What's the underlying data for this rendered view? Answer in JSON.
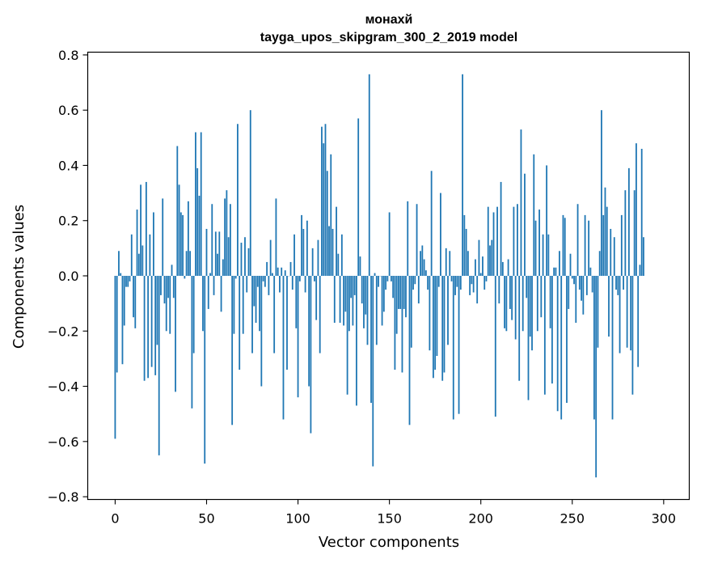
{
  "chart_data": {
    "type": "bar",
    "title": "монахй",
    "subtitle": "tayga_upos_skipgram_300_2_2019 model",
    "xlabel": "Vector components",
    "ylabel": "Components values",
    "xlim": [
      -15,
      314
    ],
    "ylim": [
      -0.81,
      0.81
    ],
    "xticks": [
      0,
      50,
      100,
      150,
      200,
      250,
      300
    ],
    "yticks": [
      -0.8,
      -0.6,
      -0.4,
      -0.2,
      0.0,
      0.2,
      0.4,
      0.6,
      0.8
    ],
    "ytick_labels": [
      "−0.8",
      "−0.6",
      "−0.4",
      "−0.2",
      "0.0",
      "0.2",
      "0.4",
      "0.6",
      "0.8"
    ],
    "xtick_labels": [
      "0",
      "50",
      "100",
      "150",
      "200",
      "250",
      "300"
    ],
    "bar_color": "#1f77b4",
    "values": [
      -0.59,
      -0.35,
      0.09,
      0.01,
      -0.32,
      -0.18,
      -0.04,
      -0.04,
      -0.02,
      0.15,
      -0.15,
      -0.19,
      0.24,
      0.08,
      0.33,
      0.11,
      -0.38,
      0.34,
      -0.37,
      0.15,
      -0.33,
      0.23,
      -0.36,
      -0.25,
      -0.65,
      -0.07,
      0.28,
      -0.1,
      -0.2,
      -0.08,
      -0.21,
      0.04,
      -0.08,
      -0.42,
      0.47,
      0.33,
      0.23,
      0.22,
      -0.01,
      0.09,
      0.27,
      0.09,
      -0.48,
      -0.28,
      0.52,
      0.39,
      0.29,
      0.52,
      -0.2,
      -0.68,
      0.17,
      -0.12,
      0.01,
      0.26,
      -0.07,
      0.16,
      0.08,
      0.16,
      -0.13,
      0.06,
      0.28,
      0.31,
      0.14,
      0.26,
      -0.54,
      -0.21,
      -0.01,
      0.55,
      -0.34,
      0.12,
      -0.21,
      0.14,
      -0.06,
      0.1,
      0.6,
      -0.28,
      -0.11,
      -0.17,
      -0.04,
      -0.2,
      -0.4,
      -0.02,
      -0.04,
      0.05,
      -0.07,
      0.13,
      0.01,
      -0.28,
      0.28,
      0.03,
      -0.06,
      0.03,
      -0.52,
      0.02,
      -0.34,
      0.0,
      0.05,
      -0.05,
      0.15,
      -0.19,
      -0.44,
      -0.02,
      0.22,
      0.17,
      -0.06,
      0.2,
      -0.4,
      -0.57,
      0.1,
      -0.02,
      -0.16,
      0.13,
      -0.28,
      0.54,
      0.48,
      0.55,
      0.38,
      0.18,
      0.44,
      0.17,
      -0.17,
      0.25,
      0.08,
      -0.17,
      0.15,
      -0.18,
      -0.13,
      -0.43,
      -0.2,
      -0.08,
      -0.18,
      -0.07,
      -0.47,
      0.57,
      0.07,
      -0.1,
      -0.19,
      -0.14,
      -0.25,
      0.73,
      -0.46,
      -0.69,
      0.01,
      -0.25,
      -0.04,
      0.0,
      -0.18,
      -0.13,
      -0.05,
      -0.02,
      0.23,
      -0.02,
      -0.08,
      -0.34,
      -0.21,
      -0.12,
      -0.12,
      -0.35,
      -0.12,
      -0.15,
      0.27,
      -0.54,
      -0.26,
      -0.05,
      -0.03,
      0.26,
      -0.1,
      0.09,
      0.11,
      0.06,
      0.02,
      -0.05,
      -0.27,
      0.38,
      -0.37,
      -0.34,
      -0.29,
      -0.04,
      0.3,
      -0.38,
      -0.35,
      0.1,
      -0.25,
      0.09,
      -0.02,
      -0.52,
      -0.07,
      -0.04,
      -0.5,
      -0.05,
      0.73,
      0.22,
      0.17,
      0.09,
      -0.07,
      -0.03,
      -0.06,
      0.06,
      -0.1,
      0.13,
      0.01,
      0.07,
      -0.05,
      -0.02,
      0.25,
      0.11,
      0.13,
      0.23,
      -0.51,
      0.25,
      -0.1,
      0.34,
      0.05,
      -0.19,
      -0.2,
      0.06,
      -0.12,
      -0.16,
      0.25,
      -0.23,
      0.26,
      -0.38,
      0.53,
      -0.2,
      0.37,
      -0.08,
      -0.45,
      -0.22,
      -0.27,
      0.44,
      0.2,
      -0.2,
      0.24,
      -0.15,
      0.15,
      -0.43,
      0.4,
      0.15,
      -0.19,
      -0.39,
      0.03,
      0.03,
      -0.49,
      0.09,
      -0.52,
      0.22,
      0.21,
      -0.46,
      -0.12,
      0.08,
      -0.01,
      -0.03,
      -0.17,
      0.26,
      -0.05,
      -0.09,
      -0.14,
      0.22,
      -0.07,
      0.2,
      0.03,
      -0.06,
      -0.52,
      -0.73,
      -0.26,
      0.09,
      0.6,
      0.22,
      0.32,
      0.25,
      -0.22,
      0.17,
      -0.52,
      0.14,
      -0.05,
      -0.07,
      -0.28,
      0.22,
      -0.05,
      0.31,
      -0.26,
      0.39,
      -0.27,
      -0.43,
      0.31,
      0.48,
      -0.33,
      0.04,
      0.46,
      0.14
    ]
  }
}
